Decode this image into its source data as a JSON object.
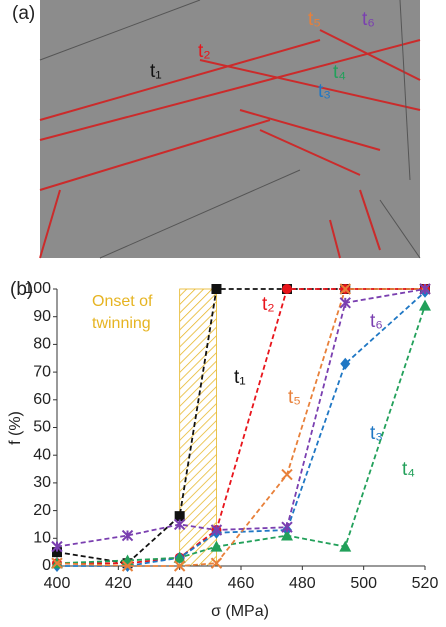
{
  "chart_data": {
    "type": "line",
    "panel_a_label": "(a)",
    "panel_b_label": "(b)",
    "image_labels": [
      {
        "text": "t₁",
        "color": "#111111"
      },
      {
        "text": "t₂",
        "color": "#e8141b"
      },
      {
        "text": "t₃",
        "color": "#1f77c4"
      },
      {
        "text": "t₄",
        "color": "#22a05a"
      },
      {
        "text": "t₅",
        "color": "#e8803a"
      },
      {
        "text": "t₆",
        "color": "#7a3fb0"
      }
    ],
    "x_label": "σ (MPa)",
    "y_label": "f (%)",
    "onset_label": "Onset of twinning",
    "onset_color": "#e6b422",
    "onset_range": [
      440,
      452
    ],
    "x": [
      400,
      423,
      440,
      452,
      475,
      494,
      520
    ],
    "series": [
      {
        "name": "t₁",
        "color": "#111111",
        "marker": "square",
        "values": [
          5,
          1,
          18,
          100,
          100,
          100,
          100
        ]
      },
      {
        "name": "t₂",
        "color": "#e8141b",
        "marker": "circle",
        "values": [
          1,
          1,
          3,
          13,
          100,
          100,
          100
        ]
      },
      {
        "name": "t₃",
        "color": "#1f77c4",
        "marker": "diamond",
        "values": [
          0,
          0,
          3,
          12,
          13,
          73,
          99
        ]
      },
      {
        "name": "t₄",
        "color": "#22a05a",
        "marker": "triangle",
        "values": [
          1,
          2,
          3,
          7,
          11,
          7,
          94
        ]
      },
      {
        "name": "t₅",
        "color": "#e8803a",
        "marker": "x",
        "values": [
          1,
          0,
          0,
          1,
          33,
          100,
          100
        ]
      },
      {
        "name": "t₆",
        "color": "#7a3fb0",
        "marker": "asterisk",
        "values": [
          7,
          11,
          15,
          13,
          14,
          95,
          100
        ]
      }
    ],
    "xlim": [
      400,
      520
    ],
    "xticks": [
      400,
      420,
      440,
      460,
      480,
      500,
      520
    ],
    "ylim": [
      0,
      100
    ],
    "yticks": [
      0,
      10,
      20,
      30,
      40,
      50,
      60,
      70,
      80,
      90,
      100
    ]
  }
}
